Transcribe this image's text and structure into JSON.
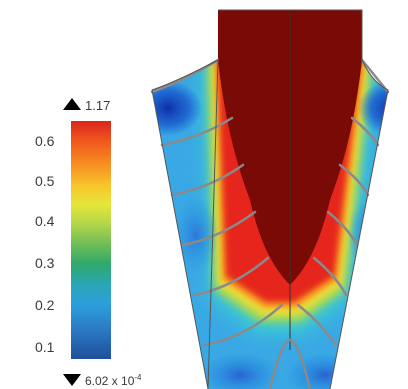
{
  "legend": {
    "max_label": "1.17",
    "min_label_mantissa": "6.02 x 10",
    "min_label_exponent": "-4",
    "ticks": [
      "0.6",
      "0.5",
      "0.4",
      "0.3",
      "0.2",
      "0.1"
    ]
  },
  "colors": {
    "high": "#7a0a06",
    "low": "#0e2fa8",
    "outline": "#555555",
    "fins": "#8a8a8a"
  }
}
